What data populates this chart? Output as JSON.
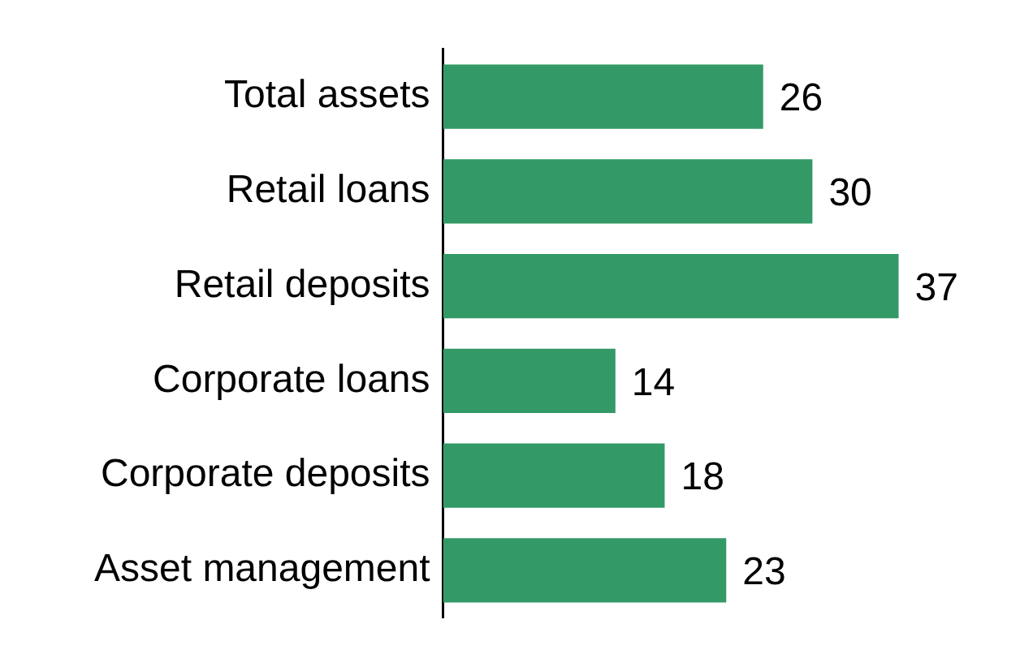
{
  "chart_data": {
    "type": "bar",
    "orientation": "horizontal",
    "categories": [
      "Total assets",
      "Retail loans",
      "Retail deposits",
      "Corporate loans",
      "Corporate deposits",
      "Asset management"
    ],
    "values": [
      26,
      30,
      37,
      14,
      18,
      23
    ],
    "color": "#339966",
    "data_labels": true
  }
}
